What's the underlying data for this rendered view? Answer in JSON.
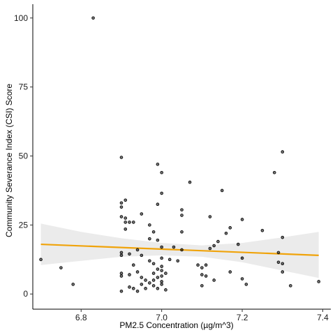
{
  "chart_data": {
    "type": "scatter",
    "xlabel": "PM2.5 Concentration (µg/m^3)",
    "ylabel": "Community Severance Index (CSI) Score",
    "xlim": [
      6.68,
      7.42
    ],
    "ylim": [
      -5.5,
      105
    ],
    "xticks": [
      6.8,
      7.0,
      7.2,
      7.4
    ],
    "xtick_labels": [
      "6.8",
      "7.0",
      "7.2",
      "7.4"
    ],
    "yticks": [
      0,
      25,
      50,
      75,
      100
    ],
    "ytick_labels": [
      "0",
      "25",
      "50",
      "75",
      "100"
    ],
    "grid": false,
    "points": [
      [
        6.7,
        12.5
      ],
      [
        6.75,
        9.5
      ],
      [
        6.78,
        3.5
      ],
      [
        6.83,
        100
      ],
      [
        6.9,
        49.5
      ],
      [
        6.9,
        33
      ],
      [
        6.9,
        31.5
      ],
      [
        6.91,
        34
      ],
      [
        6.9,
        28
      ],
      [
        6.91,
        27.5
      ],
      [
        6.91,
        26
      ],
      [
        6.91,
        23.5
      ],
      [
        6.92,
        26
      ],
      [
        6.93,
        26
      ],
      [
        6.95,
        29
      ],
      [
        6.9,
        15
      ],
      [
        6.9,
        14
      ],
      [
        6.92,
        14.5
      ],
      [
        6.94,
        16
      ],
      [
        6.95,
        14
      ],
      [
        6.9,
        7.5
      ],
      [
        6.9,
        6.5
      ],
      [
        6.92,
        7
      ],
      [
        6.93,
        10.5
      ],
      [
        6.94,
        8
      ],
      [
        6.95,
        6
      ],
      [
        6.96,
        5
      ],
      [
        6.97,
        4
      ],
      [
        6.98,
        3
      ],
      [
        6.95,
        3.5
      ],
      [
        6.93,
        2
      ],
      [
        6.94,
        1
      ],
      [
        6.9,
        1
      ],
      [
        6.92,
        2.5
      ],
      [
        6.96,
        2
      ],
      [
        6.97,
        20
      ],
      [
        6.97,
        25
      ],
      [
        6.98,
        22.5
      ],
      [
        6.99,
        19.5
      ],
      [
        6.98,
        11
      ],
      [
        6.97,
        12
      ],
      [
        6.99,
        9
      ],
      [
        6.98,
        7.5
      ],
      [
        6.99,
        6
      ],
      [
        6.98,
        5
      ],
      [
        7.0,
        17
      ],
      [
        7.0,
        13
      ],
      [
        7.0,
        10
      ],
      [
        7.0,
        8.5
      ],
      [
        7.0,
        6.5
      ],
      [
        7.0,
        4.5
      ],
      [
        7.0,
        3.5
      ],
      [
        7.01,
        1.5
      ],
      [
        6.99,
        2
      ],
      [
        7.01,
        7.5
      ],
      [
        6.99,
        47
      ],
      [
        7.0,
        44
      ],
      [
        7.0,
        36.5
      ],
      [
        6.99,
        32.5
      ],
      [
        7.02,
        12.5
      ],
      [
        7.03,
        17
      ],
      [
        7.04,
        12
      ],
      [
        7.05,
        16
      ],
      [
        7.05,
        22.5
      ],
      [
        7.05,
        28.5
      ],
      [
        7.05,
        30.5
      ],
      [
        7.07,
        40.5
      ],
      [
        7.09,
        10.5
      ],
      [
        7.1,
        9.5
      ],
      [
        7.1,
        7
      ],
      [
        7.11,
        6.5
      ],
      [
        7.11,
        10.5
      ],
      [
        7.1,
        3
      ],
      [
        7.13,
        5
      ],
      [
        7.12,
        16.5
      ],
      [
        7.12,
        28
      ],
      [
        7.13,
        17.5
      ],
      [
        7.14,
        19
      ],
      [
        7.15,
        37.5
      ],
      [
        7.16,
        22
      ],
      [
        7.17,
        24
      ],
      [
        7.17,
        8
      ],
      [
        7.19,
        18
      ],
      [
        7.2,
        13
      ],
      [
        7.2,
        27
      ],
      [
        7.2,
        5.5
      ],
      [
        7.21,
        3.5
      ],
      [
        7.25,
        23
      ],
      [
        7.28,
        44
      ],
      [
        7.29,
        15
      ],
      [
        7.29,
        11.5
      ],
      [
        7.3,
        51.5
      ],
      [
        7.3,
        20.5
      ],
      [
        7.3,
        11
      ],
      [
        7.3,
        8
      ],
      [
        7.32,
        3
      ],
      [
        7.39,
        4.5
      ]
    ],
    "trend": {
      "x": [
        6.7,
        7.39
      ],
      "y": [
        18.0,
        14.0
      ],
      "color": "#f0a30a"
    },
    "band": {
      "x": [
        6.7,
        6.8,
        6.9,
        7.0,
        7.1,
        7.2,
        7.3,
        7.39
      ],
      "upper": [
        25.5,
        22.5,
        20.2,
        18.5,
        17.6,
        18.5,
        20.5,
        22.5
      ],
      "lower": [
        10.5,
        12.0,
        13.5,
        14.0,
        13.5,
        11.5,
        8.5,
        5.8
      ],
      "color": "#ebebeb"
    },
    "point_color": "#000000"
  }
}
